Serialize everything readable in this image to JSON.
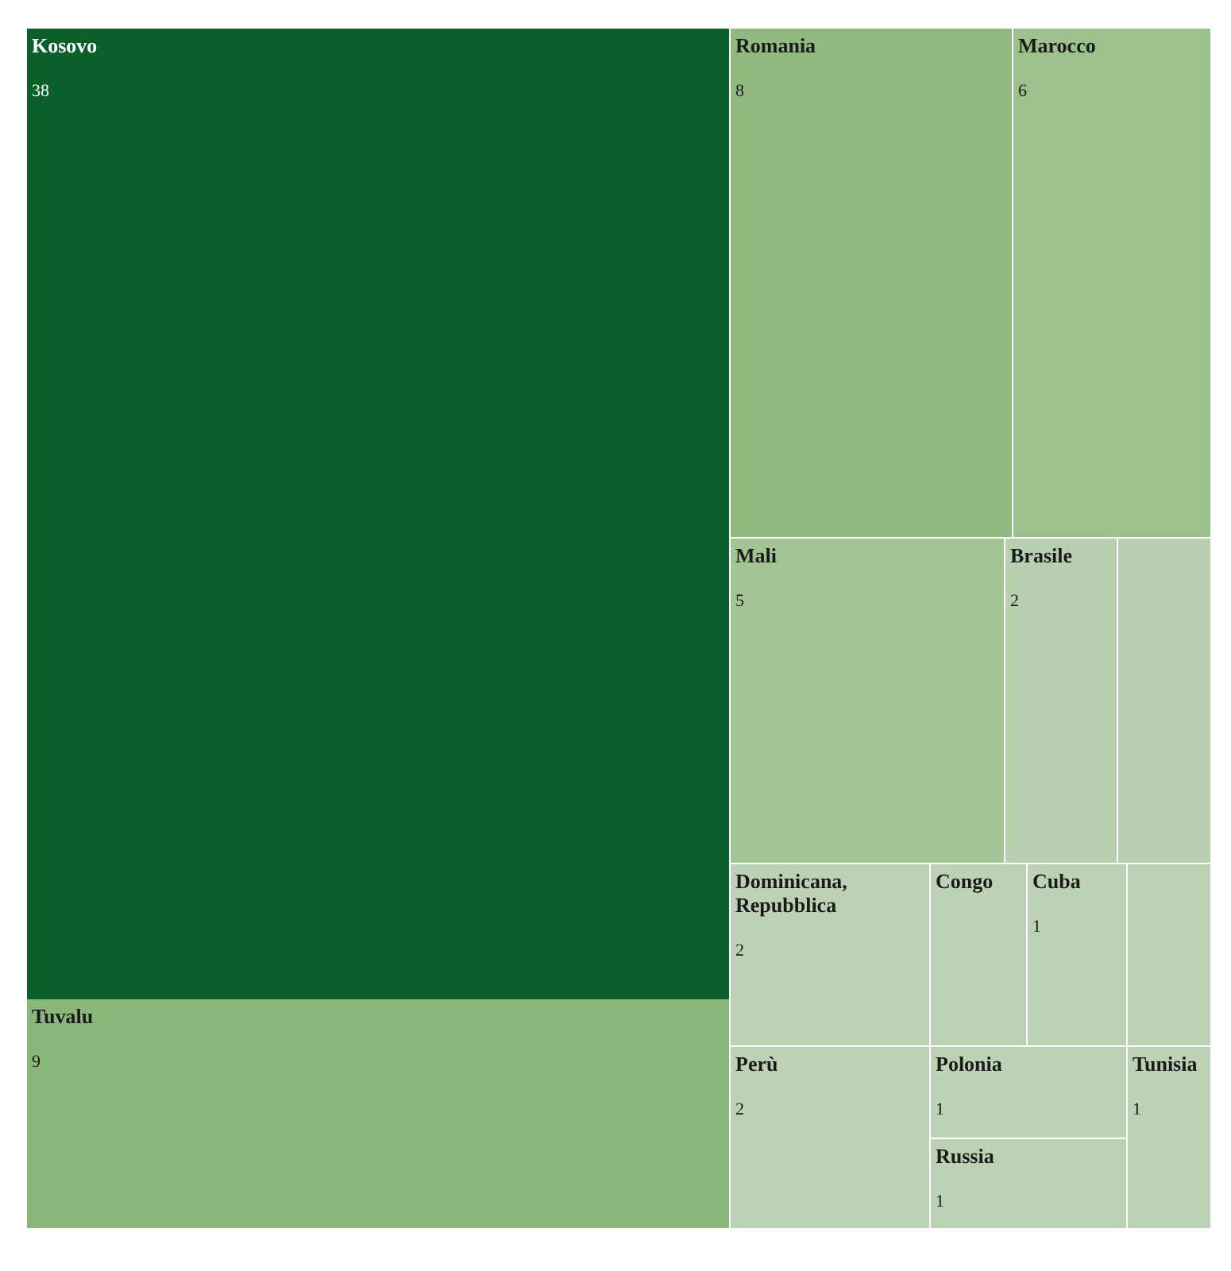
{
  "chart_data": {
    "type": "other",
    "categories": [
      "Kosovo",
      "Tuvalu",
      "Romania",
      "Marocco",
      "Mali",
      "Brasile",
      null,
      "Dominicana, Repubblica",
      "Congo",
      "Cuba",
      null,
      "Perù",
      "Polonia",
      "Russia",
      "Tunisia"
    ],
    "values": [
      38,
      9,
      8,
      6,
      5,
      2,
      null,
      2,
      null,
      1,
      null,
      2,
      1,
      1,
      1
    ],
    "colors": [
      "#0a5f2a",
      "#8ab77a",
      "#91ba80",
      "#9dc18c",
      "#a3c594",
      "#b8cfb0",
      "#b8cfb0",
      "#bdd2b5",
      "#bdd2b5",
      "#bdd2b5",
      "#bdd2b5",
      "#bdd2b5",
      "#bdd2b5",
      "#bdd2b5",
      "#bdd2b5"
    ],
    "data_labels": true
  }
}
